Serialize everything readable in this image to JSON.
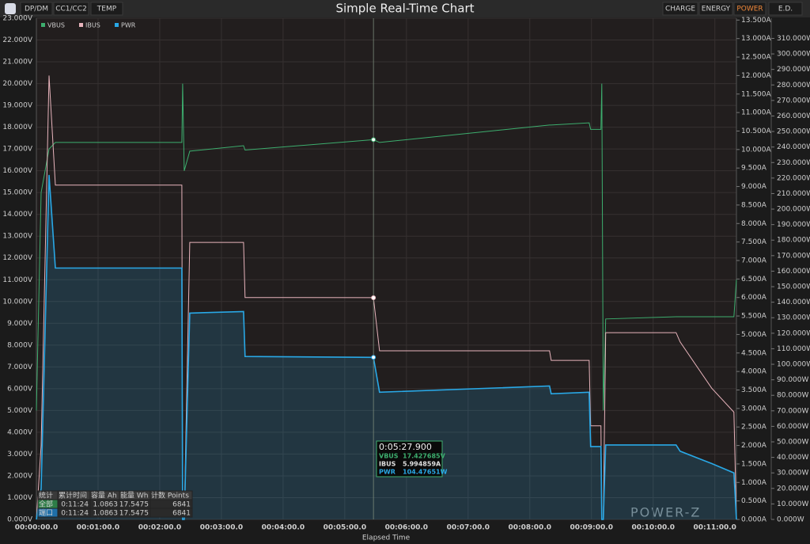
{
  "toolbar": {
    "left": [
      "DP/DM",
      "CC1/CC2",
      "TEMP"
    ],
    "right": [
      "CHARGE",
      "ENERGY",
      "POWER",
      "E.D."
    ],
    "watermark": "POWER-Z"
  },
  "chart_data": {
    "type": "line",
    "title": "Simple Real-Time Chart",
    "x_label": "Elapsed Time",
    "grid": true,
    "x": [
      0,
      4.6,
      12.3,
      18.5,
      141.5,
      142.3,
      143.8,
      149.2,
      201.5,
      203,
      327.9,
      333.8,
      499.2,
      500.8,
      537.7,
      539.2,
      549.2,
      550,
      551.5,
      553.8,
      622.3,
      626.2,
      656.9,
      678.5,
      681
    ],
    "xlim": [
      0,
      681
    ],
    "xticks": [
      {
        "value": 0,
        "label": "00:00:00.0"
      },
      {
        "value": 60,
        "label": "00:01:00.0"
      },
      {
        "value": 120,
        "label": "00:02:00.0"
      },
      {
        "value": 180,
        "label": "00:03:00.0"
      },
      {
        "value": 240,
        "label": "00:04:00.0"
      },
      {
        "value": 300,
        "label": "00:05:00.0"
      },
      {
        "value": 360,
        "label": "00:06:00.0"
      },
      {
        "value": 420,
        "label": "00:07:00.0"
      },
      {
        "value": 480,
        "label": "00:08:00.0"
      },
      {
        "value": 540,
        "label": "00:09:00.0"
      },
      {
        "value": 600,
        "label": "00:10:00.0"
      },
      {
        "value": 660,
        "label": "00:11:00.0"
      }
    ],
    "series": [
      {
        "name": "VBUS",
        "color": "#3dae6e",
        "axis": "y",
        "values": [
          5,
          15,
          17.0,
          17.3,
          17.3,
          20.0,
          16.0,
          16.9,
          17.15,
          16.95,
          17.427685,
          17.3,
          18.1,
          18.1,
          18.2,
          17.9,
          17.9,
          20.0,
          5.0,
          9.2,
          9.3,
          9.3,
          9.3,
          9.3,
          11.0
        ]
      },
      {
        "name": "IBUS",
        "color": "#e8b4bc",
        "axis": "y2",
        "values": [
          0,
          2.0,
          12.0,
          9.04,
          9.04,
          0,
          0,
          7.49,
          7.49,
          6.0,
          5.994859,
          4.56,
          4.56,
          4.3,
          4.3,
          2.53,
          2.53,
          0,
          0,
          5.05,
          5.05,
          4.8,
          3.55,
          2.9,
          0
        ]
      },
      {
        "name": "PWR",
        "color": "#29a8e6",
        "axis": "y3",
        "values": [
          0,
          20,
          222,
          162,
          162,
          0,
          0,
          133,
          134,
          105,
          104.47651,
          82,
          86,
          81,
          82,
          47,
          47,
          0,
          0,
          48,
          48,
          44,
          36,
          30,
          0
        ]
      }
    ],
    "ylim": [
      0,
      23
    ],
    "yticks": [
      {
        "value": 0,
        "label": "0.000V"
      },
      {
        "value": 1,
        "label": "1.000V"
      },
      {
        "value": 2,
        "label": "2.000V"
      },
      {
        "value": 3,
        "label": "3.000V"
      },
      {
        "value": 4,
        "label": "4.000V"
      },
      {
        "value": 5,
        "label": "5.000V"
      },
      {
        "value": 6,
        "label": "6.000V"
      },
      {
        "value": 7,
        "label": "7.000V"
      },
      {
        "value": 8,
        "label": "8.000V"
      },
      {
        "value": 9,
        "label": "9.000V"
      },
      {
        "value": 10,
        "label": "10.000V"
      },
      {
        "value": 11,
        "label": "11.000V"
      },
      {
        "value": 12,
        "label": "12.000V"
      },
      {
        "value": 13,
        "label": "13.000V"
      },
      {
        "value": 14,
        "label": "14.000V"
      },
      {
        "value": 15,
        "label": "15.000V"
      },
      {
        "value": 16,
        "label": "16.000V"
      },
      {
        "value": 17,
        "label": "17.000V"
      },
      {
        "value": 18,
        "label": "18.000V"
      },
      {
        "value": 19,
        "label": "19.000V"
      },
      {
        "value": 20,
        "label": "20.000V"
      },
      {
        "value": 21,
        "label": "21.000V"
      },
      {
        "value": 22,
        "label": "22.000V"
      },
      {
        "value": 23,
        "label": "23.000V"
      }
    ],
    "y2lim": [
      0,
      13.55
    ],
    "y2ticks": [
      {
        "value": 0,
        "label": "0.000A"
      },
      {
        "value": 0.5,
        "label": "0.500A"
      },
      {
        "value": 1,
        "label": "1.000A"
      },
      {
        "value": 1.5,
        "label": "1.500A"
      },
      {
        "value": 2,
        "label": "2.000A"
      },
      {
        "value": 2.5,
        "label": "2.500A"
      },
      {
        "value": 3,
        "label": "3.000A"
      },
      {
        "value": 3.5,
        "label": "3.500A"
      },
      {
        "value": 4,
        "label": "4.000A"
      },
      {
        "value": 4.5,
        "label": "4.500A"
      },
      {
        "value": 5,
        "label": "5.000A"
      },
      {
        "value": 5.5,
        "label": "5.500A"
      },
      {
        "value": 6,
        "label": "6.000A"
      },
      {
        "value": 6.5,
        "label": "6.500A"
      },
      {
        "value": 7,
        "label": "7.000A"
      },
      {
        "value": 7.5,
        "label": "7.500A"
      },
      {
        "value": 8,
        "label": "8.000A"
      },
      {
        "value": 8.5,
        "label": "8.500A"
      },
      {
        "value": 9,
        "label": "9.000A"
      },
      {
        "value": 9.5,
        "label": "9.500A"
      },
      {
        "value": 10,
        "label": "10.000A"
      },
      {
        "value": 10.5,
        "label": "10.500A"
      },
      {
        "value": 11,
        "label": "11.000A"
      },
      {
        "value": 11.5,
        "label": "11.500A"
      },
      {
        "value": 12,
        "label": "12.000A"
      },
      {
        "value": 12.5,
        "label": "12.500A"
      },
      {
        "value": 13,
        "label": "13.000A"
      },
      {
        "value": 13.5,
        "label": "13.500A"
      }
    ],
    "y3lim": [
      0,
      323
    ],
    "y3ticks": [
      {
        "value": 0,
        "label": "0.000W"
      },
      {
        "value": 10,
        "label": "10.000W"
      },
      {
        "value": 20,
        "label": "20.000W"
      },
      {
        "value": 30,
        "label": "30.000W"
      },
      {
        "value": 40,
        "label": "40.000W"
      },
      {
        "value": 50,
        "label": "50.000W"
      },
      {
        "value": 60,
        "label": "60.000W"
      },
      {
        "value": 70,
        "label": "70.000W"
      },
      {
        "value": 80,
        "label": "80.000W"
      },
      {
        "value": 90,
        "label": "90.000W"
      },
      {
        "value": 100,
        "label": "100.000W"
      },
      {
        "value": 110,
        "label": "110.000W"
      },
      {
        "value": 120,
        "label": "120.000W"
      },
      {
        "value": 130,
        "label": "130.000W"
      },
      {
        "value": 140,
        "label": "140.000W"
      },
      {
        "value": 150,
        "label": "150.000W"
      },
      {
        "value": 160,
        "label": "160.000W"
      },
      {
        "value": 170,
        "label": "170.000W"
      },
      {
        "value": 180,
        "label": "180.000W"
      },
      {
        "value": 190,
        "label": "190.000W"
      },
      {
        "value": 200,
        "label": "200.000W"
      },
      {
        "value": 210,
        "label": "210.000W"
      },
      {
        "value": 220,
        "label": "220.000W"
      },
      {
        "value": 230,
        "label": "230.000W"
      },
      {
        "value": 240,
        "label": "240.000W"
      },
      {
        "value": 250,
        "label": "250.000W"
      },
      {
        "value": 260,
        "label": "260.000W"
      },
      {
        "value": 270,
        "label": "270.000W"
      },
      {
        "value": 280,
        "label": "280.000W"
      },
      {
        "value": 290,
        "label": "290.000W"
      },
      {
        "value": 300,
        "label": "300.000W"
      },
      {
        "value": 310,
        "label": "310.000W"
      }
    ],
    "tooltip": {
      "x": 327.9,
      "time": "0:05:27.900",
      "rows": [
        {
          "name": "VBUS",
          "value": "17.427685V"
        },
        {
          "name": "IBUS",
          "value": "5.994859A"
        },
        {
          "name": "PWR",
          "value": "104.47651W"
        }
      ]
    }
  },
  "stats": {
    "header": [
      "统计",
      "累计时间",
      "容量 Ah",
      "能量 Wh",
      "计数 Points"
    ],
    "rows": [
      [
        "全部",
        "0:11:24",
        "1.0863",
        "17.5475",
        "6841"
      ],
      [
        "端口",
        "0:11:24",
        "1.0863",
        "17.5475",
        "6841"
      ]
    ]
  }
}
